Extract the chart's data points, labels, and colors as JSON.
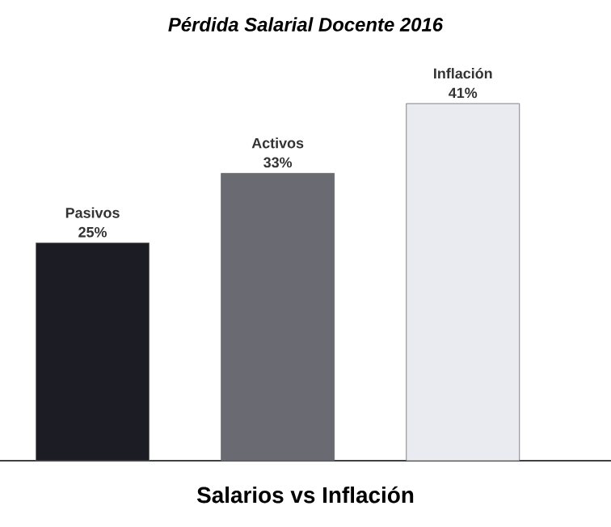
{
  "chart_data": {
    "type": "bar",
    "title": "Pérdida  Salarial Docente 2016",
    "xlabel": "Salarios vs Inflación",
    "categories": [
      "Pasivos",
      "Activos",
      "Inflación"
    ],
    "values": [
      25,
      33,
      41
    ],
    "value_labels": [
      "25%",
      "33%",
      "41%"
    ],
    "colors": [
      "#1c1c24",
      "#6a6a72",
      "#e9ebf1"
    ]
  }
}
